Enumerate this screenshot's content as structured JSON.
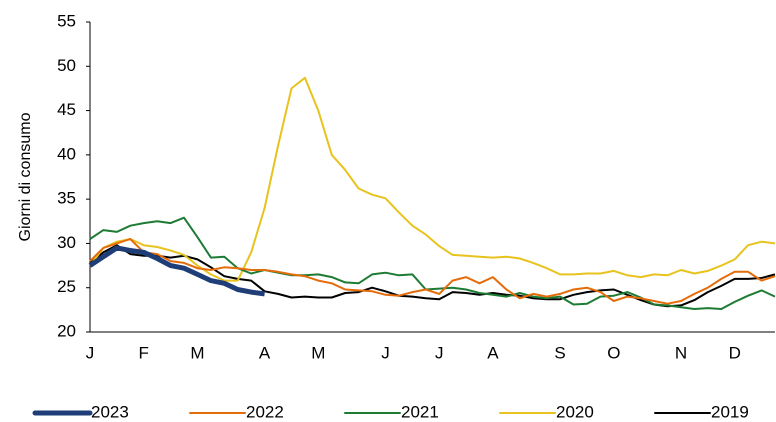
{
  "chart_data": {
    "type": "line",
    "y_label": "Giorni di consumo",
    "categories": [
      "J",
      null,
      null,
      null,
      "F",
      null,
      null,
      null,
      "M",
      null,
      null,
      null,
      null,
      "A",
      null,
      null,
      null,
      "M",
      null,
      null,
      null,
      null,
      "J",
      null,
      null,
      null,
      "J",
      null,
      null,
      null,
      "A",
      null,
      null,
      null,
      null,
      "S",
      null,
      null,
      null,
      "O",
      null,
      null,
      null,
      null,
      "N",
      null,
      null,
      null,
      "D",
      null,
      null,
      null
    ],
    "ylim": [
      20,
      55
    ],
    "yticks": [
      20,
      25,
      30,
      35,
      40,
      45,
      50,
      55
    ],
    "legend": "bottom",
    "series": [
      {
        "name": "2023",
        "color": "#1f3e78",
        "width": 5,
        "values": [
          27.5,
          28.5,
          29.5,
          29.2,
          29,
          28.3,
          27.5,
          27.2,
          26.5,
          25.8,
          25.5,
          24.8,
          24.5,
          24.3,
          null,
          null,
          null,
          null,
          null,
          null,
          null,
          null,
          null,
          null,
          null,
          null,
          null,
          null,
          null,
          null,
          null,
          null,
          null,
          null,
          null,
          null,
          null,
          null,
          null,
          null,
          null,
          null,
          null,
          null,
          null,
          null,
          null,
          null,
          null,
          null,
          null,
          null
        ]
      },
      {
        "name": "2022",
        "color": "#e46c0a",
        "width": 2,
        "values": [
          28,
          29.5,
          30,
          30.5,
          29,
          28.8,
          28,
          27.8,
          27.2,
          27,
          27.3,
          27.2,
          27,
          27,
          26.8,
          26.5,
          26.3,
          25.8,
          25.5,
          24.8,
          24.7,
          24.6,
          24.2,
          24.1,
          24.5,
          24.8,
          24.3,
          25.8,
          26.2,
          25.5,
          26.2,
          24.8,
          23.8,
          24.3,
          24,
          24.3,
          24.8,
          25,
          24.5,
          23.5,
          24,
          23.8,
          23.5,
          23.2,
          23.5,
          24.3,
          25,
          26,
          26.8,
          26.8,
          25.8,
          26.3
        ]
      },
      {
        "name": "2021",
        "color": "#1e7b34",
        "width": 2,
        "values": [
          30.5,
          31.5,
          31.3,
          32,
          32.3,
          32.5,
          32.3,
          32.9,
          30.7,
          28.4,
          28.5,
          27.2,
          26.6,
          27,
          26.7,
          26.4,
          26.4,
          26.5,
          26.2,
          25.6,
          25.5,
          26.5,
          26.7,
          26.4,
          26.5,
          24.8,
          24.9,
          25,
          24.8,
          24.4,
          24.2,
          24,
          24.4,
          24,
          23.8,
          24,
          23.1,
          23.2,
          24,
          24.1,
          24.5,
          23.9,
          23.1,
          23,
          22.8,
          22.6,
          22.7,
          22.6,
          23.4,
          24.1,
          24.7,
          24
        ]
      },
      {
        "name": "2020",
        "color": "#e8c31e",
        "width": 2,
        "values": [
          27.5,
          29.5,
          30.2,
          30.5,
          29.8,
          29.6,
          29.2,
          28.7,
          27.5,
          26.5,
          25.8,
          25.8,
          29,
          34,
          41,
          47.5,
          48.7,
          45,
          40,
          38.3,
          36.2,
          35.5,
          35.1,
          33.5,
          32,
          31,
          29.7,
          28.7,
          28.6,
          28.5,
          28.4,
          28.5,
          28.3,
          27.8,
          27.2,
          26.5,
          26.5,
          26.6,
          26.6,
          26.9,
          26.4,
          26.2,
          26.5,
          26.4,
          27,
          26.6,
          26.9,
          27.5,
          28.2,
          29.8,
          30.2,
          30
        ]
      },
      {
        "name": "2019",
        "color": "#000000",
        "width": 2,
        "values": [
          27.8,
          29,
          29.8,
          28.8,
          28.6,
          28.6,
          28.4,
          28.6,
          28.2,
          27.3,
          26.3,
          26,
          25.8,
          24.6,
          24.3,
          23.9,
          24,
          23.9,
          23.9,
          24.4,
          24.5,
          25,
          24.6,
          24.1,
          24,
          23.8,
          23.7,
          24.5,
          24.4,
          24.2,
          24.4,
          24.2,
          24.1,
          23.8,
          23.7,
          23.7,
          24.2,
          24.5,
          24.7,
          24.8,
          24.2,
          23.6,
          23.1,
          22.9,
          23,
          23.6,
          24.5,
          25.2,
          26,
          26,
          26.1,
          26.5
        ]
      }
    ]
  }
}
